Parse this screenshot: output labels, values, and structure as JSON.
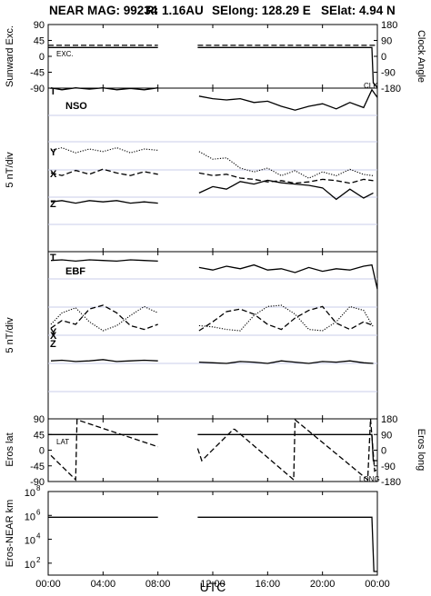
{
  "header": {
    "mag": "NEAR MAG: 99234",
    "r": "R: 1.16AU",
    "selong": "SElong:  128.29 E",
    "selat": "SElat:    4.94 N"
  },
  "x_axis": {
    "label": "UTC",
    "ticks": [
      "00:00",
      "04:00",
      "08:00",
      "12:00",
      "16:00",
      "20:00",
      "00:00"
    ],
    "tick_hours": [
      0,
      4,
      8,
      12,
      16,
      20,
      24
    ],
    "range_hours": [
      0,
      24
    ],
    "gap_hours": [
      8.0,
      10.9
    ]
  },
  "chart_data": [
    {
      "type": "line",
      "panel": "sunward-clock",
      "ylabel_left": "Sunward Exc.",
      "ylabel_right": "Clock Angle",
      "left_ticks": [
        "90",
        "45",
        "0",
        "-45",
        "-90"
      ],
      "left_tick_values": [
        90,
        45,
        0,
        -45,
        -90
      ],
      "right_ticks": [
        "180",
        "90",
        "0",
        "-90",
        "-180"
      ],
      "ylim_left": [
        -90,
        90
      ],
      "ylim_right": [
        -180,
        180
      ],
      "series_labels": [
        "EXC.",
        "CLK"
      ],
      "series": [
        {
          "name": "EXC.",
          "style": "solid",
          "x": [
            0,
            8,
            10.9,
            23.6,
            23.7,
            24
          ],
          "y": [
            25,
            25,
            25,
            25,
            -75,
            -88
          ]
        },
        {
          "name": "CLK",
          "style": "dashed",
          "x": [
            0,
            8,
            10.9,
            23.6,
            23.9,
            24
          ],
          "y": [
            31,
            31,
            31,
            31,
            31,
            31
          ]
        }
      ]
    },
    {
      "type": "line",
      "panel": "nso",
      "title": "NSO",
      "ylabel": "5 nT/div",
      "series_labels": [
        "T",
        "Y",
        "X",
        "Z"
      ],
      "series": [
        {
          "name": "T",
          "style": "solid",
          "x": [
            0.2,
            1,
            2,
            3,
            4,
            5,
            6,
            7,
            8,
            11,
            12,
            13,
            14,
            15,
            16,
            17,
            18,
            19,
            20,
            21,
            22,
            23,
            23.6,
            24
          ],
          "y": [
            0.95,
            0.8,
            0.95,
            0.85,
            0.95,
            0.8,
            0.9,
            0.8,
            0.95,
            0.3,
            0.1,
            0.0,
            0.1,
            -0.2,
            -0.1,
            -0.5,
            -0.8,
            -0.5,
            -0.3,
            -0.7,
            -0.2,
            -0.6,
            0.8,
            0.2
          ]
        },
        {
          "name": "Y",
          "style": "dotted",
          "x": [
            0.2,
            1,
            2,
            3,
            4,
            5,
            6,
            7,
            8,
            11,
            12,
            13,
            14,
            15,
            16,
            17,
            18,
            19,
            20,
            21,
            22,
            23,
            23.7
          ],
          "y": [
            0.4,
            0.6,
            0.2,
            0.5,
            0.3,
            0.6,
            0.2,
            0.5,
            0.4,
            0.3,
            -0.3,
            -0.2,
            -1.0,
            -1.3,
            -1.0,
            -1.6,
            -1.2,
            -1.8,
            -1.3,
            -1.6,
            -1.1,
            -1.5,
            -1.6
          ]
        },
        {
          "name": "X",
          "style": "dashed",
          "x": [
            0.2,
            1,
            2,
            3,
            4,
            5,
            6,
            7,
            8,
            11,
            12,
            13,
            14,
            15,
            16,
            17,
            18,
            19,
            20,
            21,
            22,
            23,
            23.7
          ],
          "y": [
            -0.1,
            -0.3,
            0.1,
            -0.2,
            0.2,
            -0.1,
            -0.3,
            0.0,
            -0.2,
            -0.1,
            -0.3,
            -0.2,
            -0.5,
            -0.6,
            -0.8,
            -0.7,
            -0.9,
            -0.8,
            -0.6,
            -0.7,
            -0.9,
            -0.6,
            -0.7
          ]
        },
        {
          "name": "Z",
          "style": "solid",
          "x": [
            0.2,
            1,
            2,
            3,
            4,
            5,
            6,
            7,
            8,
            11,
            12,
            13,
            14,
            15,
            16,
            17,
            18,
            19,
            20,
            21,
            22,
            23,
            23.7
          ],
          "y": [
            0.2,
            0.3,
            0.1,
            0.3,
            0.2,
            0.3,
            0.1,
            0.2,
            0.1,
            0.9,
            1.4,
            1.2,
            1.8,
            1.6,
            1.9,
            1.7,
            1.6,
            1.5,
            1.3,
            0.4,
            1.2,
            0.5,
            0.9
          ]
        }
      ]
    },
    {
      "type": "line",
      "panel": "ebf",
      "title": "EBF",
      "ylabel": "5 nT/div",
      "series_labels": [
        "T",
        "Y",
        "X",
        "Z"
      ],
      "series": [
        {
          "name": "T",
          "style": "solid",
          "x": [
            0.2,
            1,
            2,
            3,
            4,
            5,
            6,
            7,
            8,
            11,
            12,
            13,
            14,
            15,
            16,
            17,
            18,
            19,
            20,
            21,
            22,
            23,
            23.6,
            24
          ],
          "y": [
            0.95,
            1.0,
            0.9,
            1.0,
            0.95,
            0.9,
            1.0,
            0.95,
            0.9,
            0.4,
            0.2,
            0.5,
            0.3,
            0.6,
            0.2,
            0.3,
            0.0,
            0.4,
            0.1,
            0.3,
            0.2,
            0.5,
            0.6,
            -1.3
          ]
        },
        {
          "name": "Y",
          "style": "dashed",
          "x": [
            0.2,
            1,
            2,
            3,
            4,
            5,
            6,
            7,
            8,
            11,
            12,
            13,
            14,
            15,
            16,
            17,
            18,
            19,
            20,
            21,
            22,
            23,
            23.7
          ],
          "y": [
            -0.8,
            -0.2,
            -0.5,
            0.7,
            1.0,
            0.4,
            -0.6,
            -0.9,
            -0.5,
            -1.0,
            -0.3,
            0.5,
            0.7,
            0.3,
            -0.5,
            -0.9,
            0.0,
            0.6,
            0.9,
            -0.4,
            -0.9,
            -0.3,
            -0.6
          ]
        },
        {
          "name": "X",
          "style": "dotted",
          "x": [
            0.2,
            1,
            2,
            3,
            4,
            5,
            6,
            7,
            8,
            11,
            12,
            13,
            14,
            15,
            16,
            17,
            18,
            19,
            20,
            21,
            22,
            23,
            23.7
          ],
          "y": [
            -0.5,
            0.4,
            0.8,
            -0.3,
            -1.0,
            -0.6,
            0.2,
            0.9,
            0.4,
            -0.6,
            -0.7,
            -0.9,
            -1.0,
            0.2,
            0.9,
            1.0,
            0.3,
            -0.9,
            -1.0,
            -0.3,
            0.9,
            0.6,
            -0.7
          ]
        },
        {
          "name": "Z",
          "style": "solid",
          "x": [
            0.2,
            1,
            2,
            3,
            4,
            5,
            6,
            7,
            8,
            11,
            12,
            13,
            14,
            15,
            16,
            17,
            18,
            19,
            20,
            21,
            22,
            23,
            23.7
          ],
          "y": [
            -0.8,
            -0.75,
            -0.85,
            -0.8,
            -0.7,
            -0.85,
            -0.8,
            -0.75,
            -0.8,
            -0.9,
            -0.95,
            -1.0,
            -0.85,
            -0.9,
            -1.0,
            -0.8,
            -0.9,
            -1.0,
            -0.85,
            -0.9,
            -0.8,
            -0.95,
            -1.0
          ]
        }
      ]
    },
    {
      "type": "line",
      "panel": "eros-position",
      "ylabel_left": "Eros lat",
      "ylabel_right": "Eros long",
      "left_ticks": [
        "90",
        "45",
        "0",
        "-45",
        "-90"
      ],
      "left_tick_values": [
        90,
        45,
        0,
        -45,
        -90
      ],
      "right_ticks": [
        "180",
        "90",
        "0",
        "-90",
        "-180"
      ],
      "ylim_left": [
        -90,
        90
      ],
      "ylim_right": [
        -180,
        180
      ],
      "series_labels": [
        "LAT",
        "LONG"
      ],
      "series": [
        {
          "name": "LAT",
          "style": "solid",
          "x": [
            0,
            8,
            10.9,
            23.6,
            23.7,
            24
          ],
          "y": [
            45,
            45,
            45,
            45,
            -30,
            -30
          ]
        },
        {
          "name": "LONG",
          "style": "dashed",
          "axis": "right",
          "x": [
            0.2,
            2.0,
            2.1,
            8.0,
            10.9,
            11.2,
            13.5,
            13.6,
            17.9,
            18.0,
            23.3,
            23.5,
            23.8,
            24
          ],
          "y": [
            -30,
            -170,
            175,
            20,
            10,
            -60,
            120,
            120,
            -170,
            175,
            -170,
            180,
            -120,
            -110
          ]
        }
      ]
    },
    {
      "type": "line",
      "panel": "eros-near-distance",
      "ylabel": "Eros-NEAR km",
      "scale": "log",
      "left_ticks": [
        "10",
        "10",
        "10",
        "10"
      ],
      "left_tick_exponents": [
        "8",
        "6",
        "4",
        "2"
      ],
      "ylim": [
        10,
        100000000
      ],
      "series": [
        {
          "name": "",
          "style": "solid",
          "x": [
            0,
            8,
            10.9,
            23.6,
            23.75,
            24
          ],
          "y": [
            700000,
            700000,
            700000,
            700000,
            20,
            20
          ]
        }
      ]
    }
  ]
}
